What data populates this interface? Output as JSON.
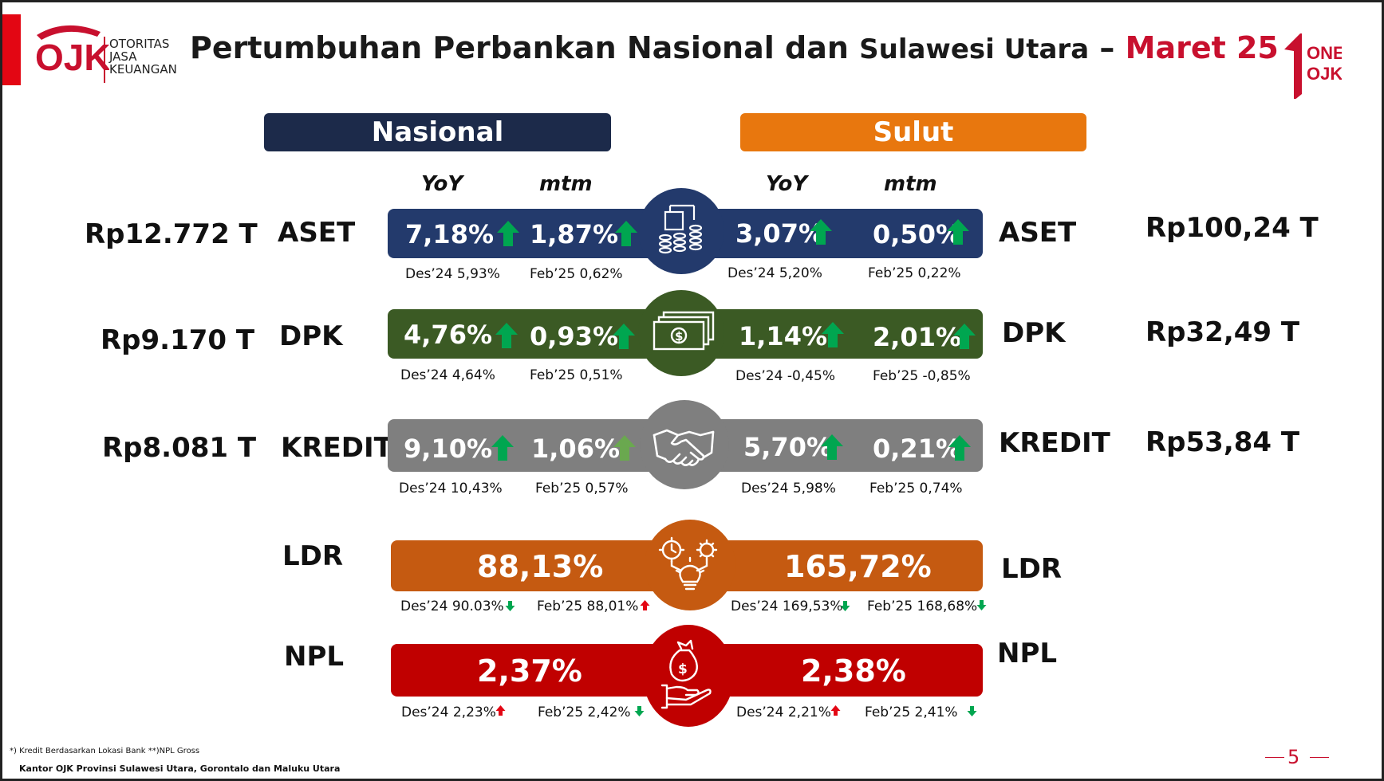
{
  "header": {
    "logo_text": "OJK",
    "org_line1": "OTORITAS",
    "org_line2": "JASA",
    "org_line3": "KEUANGAN",
    "title_main": "Pertumbuhan Perbankan Nasional dan ",
    "title_region": "Sulawesi Utara",
    "title_dash": " – ",
    "title_period": "Maret 25",
    "brand_line1": "ONE",
    "brand_line2": "OJK"
  },
  "columns": {
    "nasional": "Nasional",
    "sulut": "Sulut",
    "yoy": "YoY",
    "mtm": "mtm"
  },
  "rows": {
    "aset": {
      "label": "ASET",
      "nas_amount": "Rp12.772 T",
      "sul_amount": "Rp100,24 T",
      "nas_yoy": "7,18%",
      "nas_mtm": "1,87%",
      "sul_yoy": "3,07%",
      "sul_mtm": "0,50%",
      "nas_yoy_prev": "Des’24 5,93%",
      "nas_mtm_prev": "Feb’25 0,62%",
      "sul_yoy_prev": "Des’24 5,20%",
      "sul_mtm_prev": "Feb’25 0,22%",
      "icon": "coins-chart-icon"
    },
    "dpk": {
      "label": "DPK",
      "nas_amount": "Rp9.170 T",
      "sul_amount": "Rp32,49 T",
      "nas_yoy": "4,76%",
      "nas_mtm": "0,93%",
      "sul_yoy": "1,14%",
      "sul_mtm": "2,01%",
      "nas_yoy_prev": "Des’24 4,64%",
      "nas_mtm_prev": "Feb’25 0,51%",
      "sul_yoy_prev": "Des’24 -0,45%",
      "sul_mtm_prev": "Feb’25 -0,85%",
      "icon": "banknotes-icon"
    },
    "kredit": {
      "label": "KREDIT",
      "nas_amount": "Rp8.081 T",
      "sul_amount": "Rp53,84 T",
      "nas_yoy": "9,10%",
      "nas_mtm": "1,06%",
      "sul_yoy": "5,70%",
      "sul_mtm": "0,21%",
      "nas_yoy_prev": "Des’24 10,43%",
      "nas_mtm_prev": "Feb’25 0,57%",
      "sul_yoy_prev": "Des’24 5,98%",
      "sul_mtm_prev": "Feb’25 0,74%",
      "icon": "handshake-icon"
    },
    "ldr": {
      "label": "LDR",
      "nas_value": "88,13%",
      "sul_value": "165,72%",
      "nas_yoy_prev": "Des’24  90.03%",
      "nas_mtm_prev": "Feb’25 88,01%",
      "sul_yoy_prev": "Des’24 169,53%",
      "sul_mtm_prev": "Feb’25 168,68%",
      "icon": "gears-bulb-icon"
    },
    "npl": {
      "label": "NPL",
      "nas_value": "2,37%",
      "sul_value": "2,38%",
      "nas_yoy_prev": "Des’24 2,23%",
      "nas_mtm_prev": "Feb’25 2,42%",
      "sul_yoy_prev": "Des’24 2,21%",
      "sul_mtm_prev": "Feb’25 2,41%",
      "icon": "money-hand-icon"
    }
  },
  "colors": {
    "nasional": "#1c2a4a",
    "sulut": "#e8770e",
    "aset": "#233a6c",
    "dpk": "#3b5a24",
    "kredit": "#7f7f7f",
    "ldr": "#c55a11",
    "npl": "#c00000",
    "up_green": "#00a650",
    "down_green": "#00a650",
    "up_red": "#e30613"
  },
  "footer": {
    "notes": "*) Kredit Berdasarkan Lokasi Bank      **)NPL Gross",
    "office": "Kantor OJK Provinsi Sulawesi Utara, Gorontalo dan Maluku Utara",
    "page": "5"
  }
}
